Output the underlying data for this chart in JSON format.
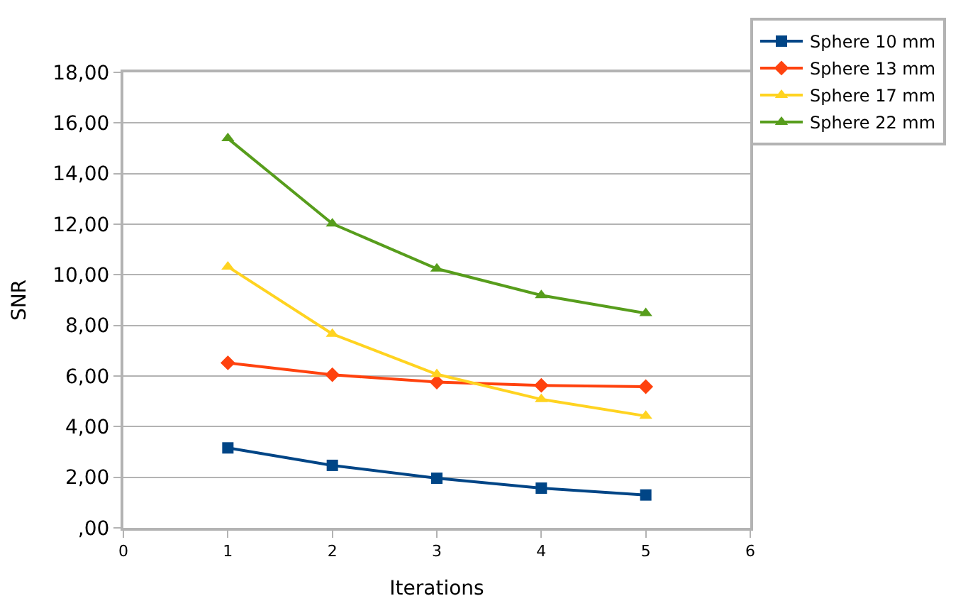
{
  "chart_data": {
    "type": "line",
    "xlabel": "Iterations",
    "ylabel": "SNR",
    "x": [
      1,
      2,
      3,
      4,
      5
    ],
    "series": [
      {
        "name": "Sphere 10 mm",
        "color": "#004586",
        "marker": "square",
        "values": [
          3.16,
          2.47,
          1.96,
          1.57,
          1.3
        ]
      },
      {
        "name": "Sphere 13 mm",
        "color": "#ff420e",
        "marker": "diamond",
        "values": [
          6.52,
          6.05,
          5.76,
          5.63,
          5.58
        ]
      },
      {
        "name": "Sphere 17 mm",
        "color": "#ffd320",
        "marker": "triangle",
        "values": [
          10.32,
          7.66,
          6.07,
          5.08,
          4.42
        ]
      },
      {
        "name": "Sphere 22 mm",
        "color": "#579d1c",
        "marker": "triangle",
        "values": [
          15.39,
          12.02,
          10.24,
          9.19,
          8.48
        ]
      }
    ],
    "xlim": [
      0,
      6
    ],
    "xticks": [
      0,
      1,
      2,
      3,
      4,
      5,
      6
    ],
    "ylim": [
      0,
      18
    ],
    "yticks": [
      {
        "value": 0,
        "label": ",00"
      },
      {
        "value": 2,
        "label": "2,00"
      },
      {
        "value": 4,
        "label": "4,00"
      },
      {
        "value": 6,
        "label": "6,00"
      },
      {
        "value": 8,
        "label": "8,00"
      },
      {
        "value": 10,
        "label": "10,00"
      },
      {
        "value": 12,
        "label": "12,00"
      },
      {
        "value": 14,
        "label": "14,00"
      },
      {
        "value": 16,
        "label": "16,00"
      },
      {
        "value": 18,
        "label": "18,00"
      }
    ],
    "grid": "y",
    "legend": "top right",
    "line_style": "solid"
  }
}
